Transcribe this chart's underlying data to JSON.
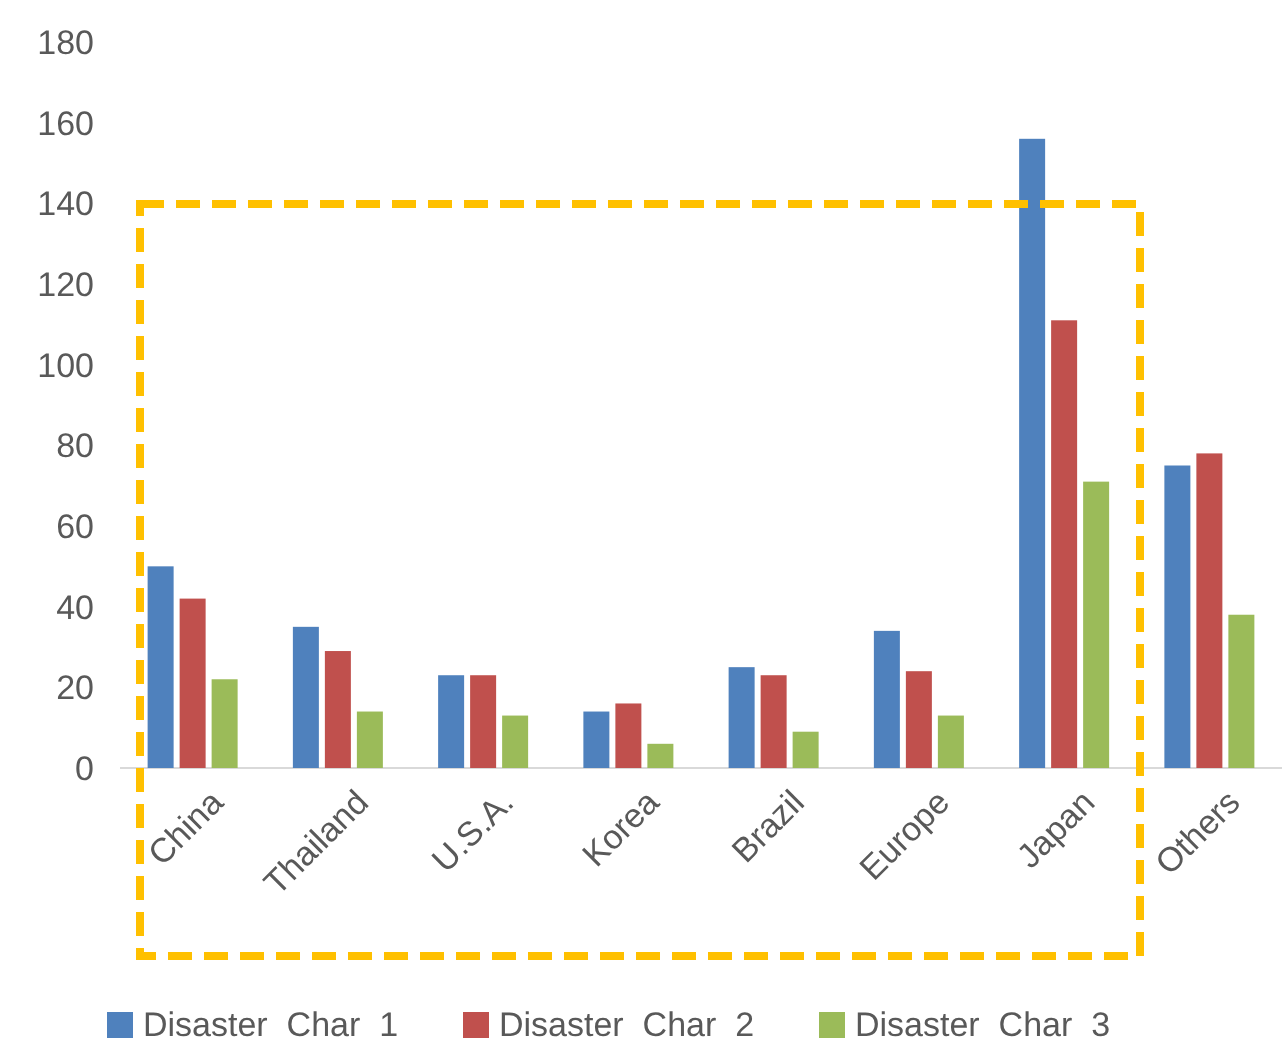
{
  "chart_data": {
    "type": "bar",
    "categories": [
      "China",
      "Thailand",
      "U.S.A.",
      "Korea",
      "Brazil",
      "Europe",
      "Japan",
      "Others"
    ],
    "series": [
      {
        "name": "Disaster  Char  1",
        "color": "#4f81bd",
        "values": [
          50,
          35,
          23,
          14,
          25,
          34,
          156,
          75
        ]
      },
      {
        "name": "Disaster  Char  2",
        "color": "#c0504d",
        "values": [
          42,
          29,
          23,
          16,
          23,
          24,
          111,
          78
        ]
      },
      {
        "name": "Disaster  Char  3",
        "color": "#9bbb59",
        "values": [
          22,
          14,
          13,
          6,
          9,
          13,
          71,
          38
        ]
      }
    ],
    "ylim": [
      0,
      180
    ],
    "yticks": [
      0,
      20,
      40,
      60,
      80,
      100,
      120,
      140,
      160,
      180
    ],
    "grid": false,
    "legend": "bottom"
  }
}
